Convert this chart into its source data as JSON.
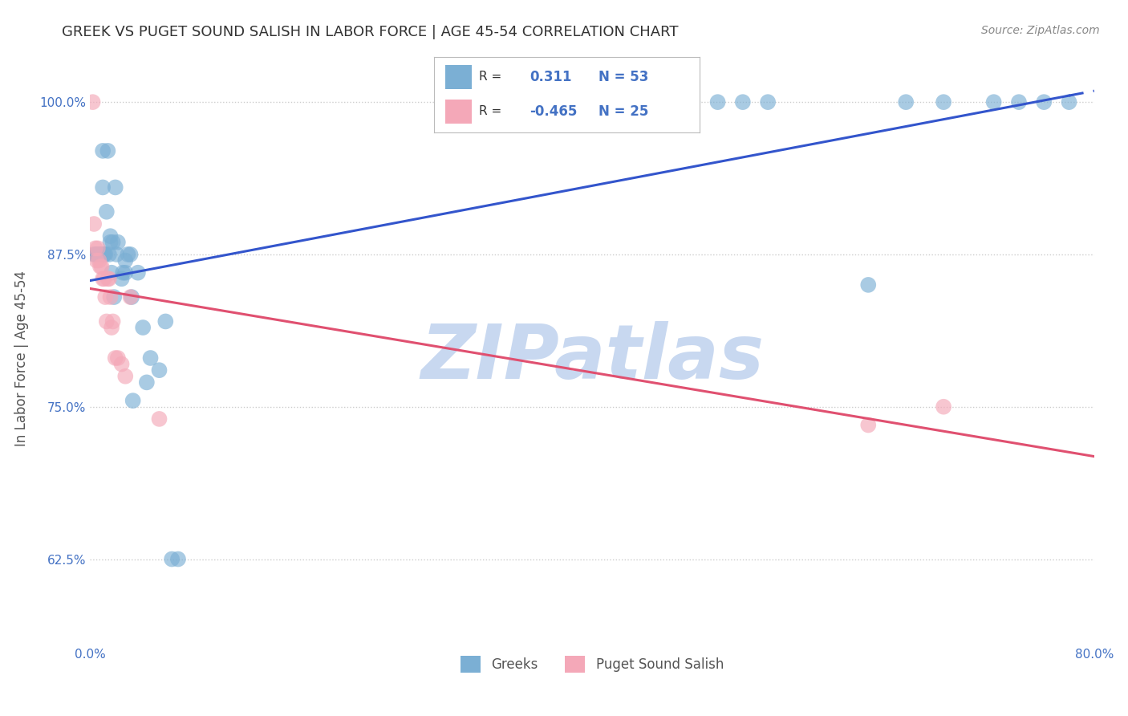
{
  "title": "GREEK VS PUGET SOUND SALISH IN LABOR FORCE | AGE 45-54 CORRELATION CHART",
  "source": "Source: ZipAtlas.com",
  "ylabel": "In Labor Force | Age 45-54",
  "xlim": [
    0.0,
    0.8
  ],
  "ylim": [
    0.555,
    1.025
  ],
  "ytick_positions": [
    0.625,
    0.75,
    0.875,
    1.0
  ],
  "yticklabels": [
    "62.5%",
    "75.0%",
    "87.5%",
    "100.0%"
  ],
  "title_color": "#333333",
  "title_fontsize": 13,
  "axis_color": "#4472c4",
  "source_color": "#888888",
  "greek_color": "#7bafd4",
  "greek_color_line": "#3355cc",
  "salish_color": "#f4a8b8",
  "salish_color_line": "#e05070",
  "watermark": "ZIPatlas",
  "watermark_color": "#c8d8f0",
  "greek_x": [
    0.003,
    0.004,
    0.005,
    0.006,
    0.006,
    0.007,
    0.007,
    0.008,
    0.008,
    0.009,
    0.01,
    0.01,
    0.011,
    0.011,
    0.012,
    0.013,
    0.014,
    0.015,
    0.016,
    0.016,
    0.017,
    0.018,
    0.019,
    0.02,
    0.021,
    0.022,
    0.025,
    0.026,
    0.028,
    0.028,
    0.03,
    0.032,
    0.033,
    0.034,
    0.038,
    0.042,
    0.045,
    0.048,
    0.055,
    0.06,
    0.065,
    0.07,
    0.48,
    0.5,
    0.52,
    0.54,
    0.62,
    0.65,
    0.68,
    0.72,
    0.74,
    0.76,
    0.78
  ],
  "greek_y": [
    0.875,
    0.875,
    0.875,
    0.875,
    0.875,
    0.875,
    0.875,
    0.875,
    0.875,
    0.875,
    0.96,
    0.93,
    0.875,
    0.875,
    0.875,
    0.91,
    0.96,
    0.875,
    0.89,
    0.885,
    0.86,
    0.885,
    0.84,
    0.93,
    0.875,
    0.885,
    0.855,
    0.86,
    0.86,
    0.87,
    0.875,
    0.875,
    0.84,
    0.755,
    0.86,
    0.815,
    0.77,
    0.79,
    0.78,
    0.82,
    0.625,
    0.625,
    1.0,
    1.0,
    1.0,
    1.0,
    0.85,
    1.0,
    1.0,
    1.0,
    1.0,
    1.0,
    1.0
  ],
  "salish_x": [
    0.002,
    0.003,
    0.004,
    0.005,
    0.006,
    0.007,
    0.008,
    0.009,
    0.01,
    0.011,
    0.012,
    0.013,
    0.014,
    0.015,
    0.016,
    0.017,
    0.018,
    0.02,
    0.022,
    0.025,
    0.028,
    0.032,
    0.055,
    0.62,
    0.68
  ],
  "salish_y": [
    1.0,
    0.9,
    0.88,
    0.87,
    0.88,
    0.87,
    0.865,
    0.865,
    0.855,
    0.855,
    0.84,
    0.82,
    0.855,
    0.855,
    0.84,
    0.815,
    0.82,
    0.79,
    0.79,
    0.785,
    0.775,
    0.84,
    0.74,
    0.735,
    0.75
  ],
  "greek_r": 0.311,
  "greek_n": 53,
  "salish_r": -0.465,
  "salish_n": 25
}
